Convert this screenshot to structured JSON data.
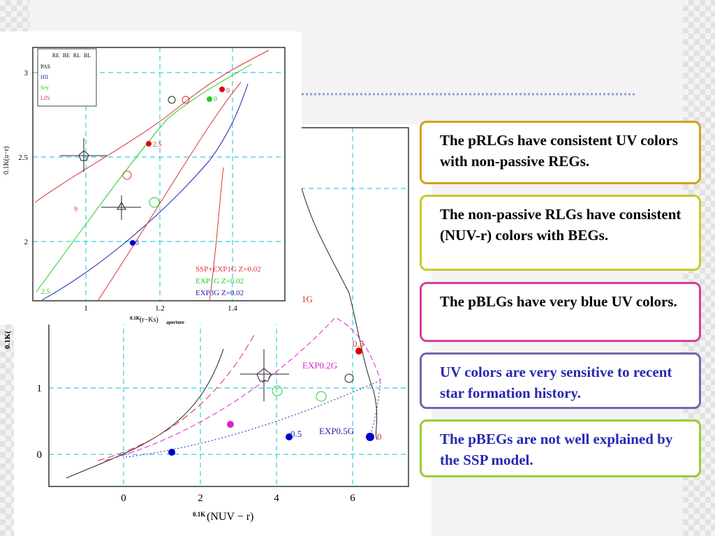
{
  "slide": {
    "boxes": [
      {
        "text": "The pRLGs have consistent UV colors with non-passive REGs."
      },
      {
        "text": "The non-passive RLGs have consistent (NUV-r) colors with BEGs."
      },
      {
        "text": "The pBLGs have very blue UV colors."
      },
      {
        "text": "UV colors are very sensitive to recent star formation history."
      },
      {
        "text": "The pBEGs are not well explained by the SSP model."
      }
    ],
    "figure_back": {
      "x_ticks": [
        "0",
        "2",
        "4",
        "6"
      ],
      "y_ticks": [
        "0",
        "1"
      ],
      "x_label_prefix": "0.1K",
      "x_label": "(NUV − r)",
      "y_label": "0.1K(",
      "annotations": [
        "1G",
        "EXP0.2G",
        "EXP0.5G",
        "0.5",
        "0.5",
        "0"
      ]
    },
    "figure_front": {
      "legend_header": [
        "RE",
        "BE",
        "RL",
        "BL"
      ],
      "legend_rows": [
        "PAS",
        "HII",
        "Sey",
        "LIN"
      ],
      "x_ticks": [
        "1",
        "1.2",
        "1.4"
      ],
      "y_ticks": [
        "2",
        "2.5",
        "3"
      ],
      "y_label": "0.1K(u−r)",
      "x_label_prefix": "0.1K",
      "x_label": "(r−Ks)",
      "x_label_sub": "aperture",
      "models": [
        "SSP+EXP1G  Z=0.02",
        "EXP1G  Z=0.02",
        "EXP3G  Z=0.02"
      ],
      "annotations": [
        "0",
        "0",
        "2.5",
        "9",
        "0",
        "2.5"
      ]
    }
  }
}
